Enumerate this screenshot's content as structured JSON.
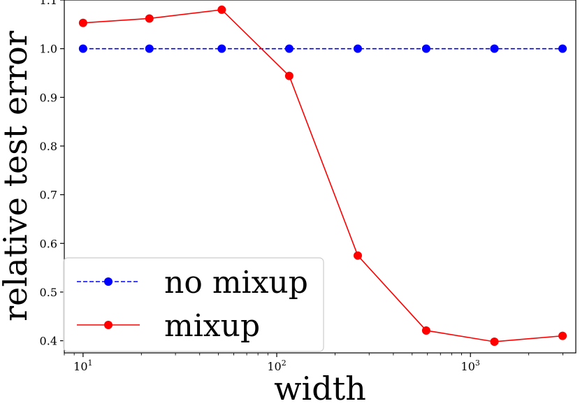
{
  "chart_data": {
    "type": "line",
    "title": "",
    "xlabel": "width",
    "ylabel": "relative test error",
    "x_scale": "log",
    "xlim": [
      8,
      3500
    ],
    "ylim": [
      0.375,
      1.1
    ],
    "x": [
      10,
      22,
      52,
      116,
      262,
      591,
      1330,
      2990
    ],
    "xtick_values": [
      10,
      100,
      1000
    ],
    "xtick_labels": [
      {
        "base": "10",
        "exp": "1"
      },
      {
        "base": "10",
        "exp": "2"
      },
      {
        "base": "10",
        "exp": "3"
      }
    ],
    "ytick_values": [
      0.4,
      0.5,
      0.6,
      0.7,
      0.8,
      0.9,
      1.0,
      1.1
    ],
    "ytick_labels": [
      "0.4",
      "0.5",
      "0.6",
      "0.7",
      "0.8",
      "0.9",
      "1.0",
      "1.1"
    ],
    "grid": false,
    "legend_position": "lower-left",
    "series": [
      {
        "name": "no mixup",
        "color": "#0000ff",
        "line_style": "dashed",
        "marker": "circle",
        "values": [
          1.0,
          1.0,
          1.0,
          1.0,
          1.0,
          1.0,
          1.0,
          1.0
        ]
      },
      {
        "name": "mixup",
        "color": "#ff0000",
        "line_style": "solid",
        "marker": "circle",
        "values": [
          1.053,
          1.062,
          1.08,
          0.944,
          0.575,
          0.421,
          0.398,
          0.41
        ]
      }
    ]
  }
}
